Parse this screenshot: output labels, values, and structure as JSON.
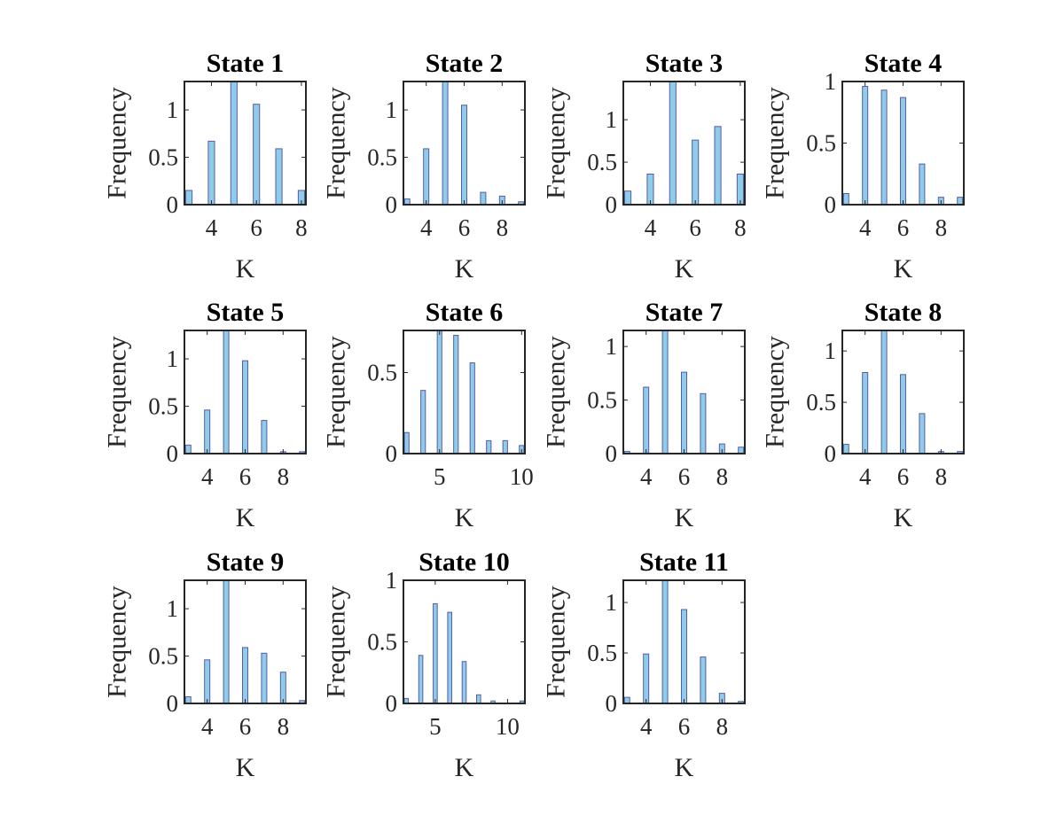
{
  "chart_data": [
    {
      "type": "bar",
      "title": "State 1",
      "xlabel": "K",
      "ylabel": "Frequency",
      "xlim": [
        2.8,
        8.2
      ],
      "ylim": [
        0,
        1.3
      ],
      "xticks": [
        4,
        6,
        8
      ],
      "xtick_labels": [
        "4",
        "6",
        "8"
      ],
      "yticks": [
        0,
        0.5,
        1
      ],
      "ytick_labels": [
        "0",
        "0.5",
        "1"
      ],
      "x": [
        3,
        4,
        5,
        6,
        7,
        8
      ],
      "values": [
        0.15,
        0.67,
        1.3,
        1.06,
        0.59,
        0.15
      ]
    },
    {
      "type": "bar",
      "title": "State 2",
      "xlabel": "K",
      "ylabel": "Frequency",
      "xlim": [
        2.8,
        9.2
      ],
      "ylim": [
        0,
        1.3
      ],
      "xticks": [
        4,
        6,
        8
      ],
      "xtick_labels": [
        "4",
        "6",
        "8"
      ],
      "yticks": [
        0,
        0.5,
        1
      ],
      "ytick_labels": [
        "0",
        "0.5",
        "1"
      ],
      "x": [
        3,
        4,
        5,
        6,
        7,
        8,
        9
      ],
      "values": [
        0.06,
        0.59,
        1.3,
        1.05,
        0.13,
        0.09,
        0.03
      ]
    },
    {
      "type": "bar",
      "title": "State 3",
      "xlabel": "K",
      "ylabel": "Frequency",
      "xlim": [
        2.8,
        8.2
      ],
      "ylim": [
        0,
        1.45
      ],
      "xticks": [
        4,
        6,
        8
      ],
      "xtick_labels": [
        "4",
        "6",
        "8"
      ],
      "yticks": [
        0,
        0.5,
        1
      ],
      "ytick_labels": [
        "0",
        "0.5",
        "1"
      ],
      "x": [
        3,
        4,
        5,
        6,
        7,
        8
      ],
      "values": [
        0.16,
        0.36,
        1.45,
        0.76,
        0.92,
        0.36
      ]
    },
    {
      "type": "bar",
      "title": "State 4",
      "xlabel": "K",
      "ylabel": "Frequency",
      "xlim": [
        2.8,
        9.2
      ],
      "ylim": [
        0,
        1
      ],
      "xticks": [
        4,
        6,
        8
      ],
      "xtick_labels": [
        "4",
        "6",
        "8"
      ],
      "yticks": [
        0,
        0.5,
        1
      ],
      "ytick_labels": [
        "0",
        "0.5",
        "1"
      ],
      "x": [
        3,
        4,
        5,
        6,
        7,
        8,
        9
      ],
      "values": [
        0.09,
        0.96,
        0.93,
        0.87,
        0.33,
        0.06,
        0.06
      ]
    },
    {
      "type": "bar",
      "title": "State 5",
      "xlabel": "K",
      "ylabel": "Frequency",
      "xlim": [
        2.8,
        9.2
      ],
      "ylim": [
        0,
        1.3
      ],
      "xticks": [
        4,
        6,
        8
      ],
      "xtick_labels": [
        "4",
        "6",
        "8"
      ],
      "yticks": [
        0,
        0.5,
        1
      ],
      "ytick_labels": [
        "0",
        "0.5",
        "1"
      ],
      "x": [
        3,
        4,
        5,
        6,
        7,
        8,
        9
      ],
      "values": [
        0.09,
        0.46,
        1.3,
        0.98,
        0.35,
        0.02,
        0.02
      ]
    },
    {
      "type": "bar",
      "title": "State 6",
      "xlabel": "K",
      "ylabel": "Frequency",
      "xlim": [
        2.8,
        10.2
      ],
      "ylim": [
        0,
        0.76
      ],
      "xticks": [
        5,
        10
      ],
      "xtick_labels": [
        "5",
        "10"
      ],
      "yticks": [
        0,
        0.5
      ],
      "ytick_labels": [
        "0",
        "0.5"
      ],
      "x": [
        3,
        4,
        5,
        6,
        7,
        8,
        9,
        10
      ],
      "values": [
        0.13,
        0.39,
        0.76,
        0.73,
        0.56,
        0.08,
        0.08,
        0.05
      ]
    },
    {
      "type": "bar",
      "title": "State 7",
      "xlabel": "K",
      "ylabel": "Frequency",
      "xlim": [
        2.8,
        9.2
      ],
      "ylim": [
        0,
        1.15
      ],
      "xticks": [
        4,
        6,
        8
      ],
      "xtick_labels": [
        "4",
        "6",
        "8"
      ],
      "yticks": [
        0,
        0.5,
        1
      ],
      "ytick_labels": [
        "0",
        "0.5",
        "1"
      ],
      "x": [
        3,
        4,
        5,
        6,
        7,
        8,
        9
      ],
      "values": [
        0.02,
        0.62,
        1.15,
        0.76,
        0.56,
        0.09,
        0.06
      ]
    },
    {
      "type": "bar",
      "title": "State 8",
      "xlabel": "K",
      "ylabel": "Frequency",
      "xlim": [
        2.8,
        9.2
      ],
      "ylim": [
        0,
        1.2
      ],
      "xticks": [
        4,
        6,
        8
      ],
      "xtick_labels": [
        "4",
        "6",
        "8"
      ],
      "yticks": [
        0,
        0.5,
        1
      ],
      "ytick_labels": [
        "0",
        "0.5",
        "1"
      ],
      "x": [
        3,
        4,
        5,
        6,
        7,
        8,
        9
      ],
      "values": [
        0.09,
        0.79,
        1.2,
        0.77,
        0.39,
        0.02,
        0.02
      ]
    },
    {
      "type": "bar",
      "title": "State 9",
      "xlabel": "K",
      "ylabel": "Frequency",
      "xlim": [
        2.8,
        9.2
      ],
      "ylim": [
        0,
        1.3
      ],
      "xticks": [
        4,
        6,
        8
      ],
      "xtick_labels": [
        "4",
        "6",
        "8"
      ],
      "yticks": [
        0,
        0.5,
        1
      ],
      "ytick_labels": [
        "0",
        "0.5",
        "1"
      ],
      "x": [
        3,
        4,
        5,
        6,
        7,
        8,
        9
      ],
      "values": [
        0.07,
        0.46,
        1.3,
        0.59,
        0.53,
        0.33,
        0.03
      ]
    },
    {
      "type": "bar",
      "title": "State 10",
      "xlabel": "K",
      "ylabel": "Frequency",
      "xlim": [
        2.8,
        11.2
      ],
      "ylim": [
        0,
        1
      ],
      "xticks": [
        5,
        10
      ],
      "xtick_labels": [
        "5",
        "10"
      ],
      "yticks": [
        0,
        0.5,
        1
      ],
      "ytick_labels": [
        "0",
        "0.5",
        "1"
      ],
      "x": [
        3,
        4,
        5,
        6,
        7,
        8,
        9,
        10,
        11
      ],
      "values": [
        0.04,
        0.39,
        0.81,
        0.74,
        0.34,
        0.07,
        0.02,
        0.0,
        0.02
      ]
    },
    {
      "type": "bar",
      "title": "State 11",
      "xlabel": "K",
      "ylabel": "Frequency",
      "xlim": [
        2.8,
        9.2
      ],
      "ylim": [
        0,
        1.22
      ],
      "xticks": [
        4,
        6,
        8
      ],
      "xtick_labels": [
        "4",
        "6",
        "8"
      ],
      "yticks": [
        0,
        0.5,
        1
      ],
      "ytick_labels": [
        "0",
        "0.5",
        "1"
      ],
      "x": [
        3,
        4,
        5,
        6,
        7,
        8,
        9
      ],
      "values": [
        0.06,
        0.49,
        1.22,
        0.93,
        0.46,
        0.1,
        0.02
      ]
    }
  ]
}
